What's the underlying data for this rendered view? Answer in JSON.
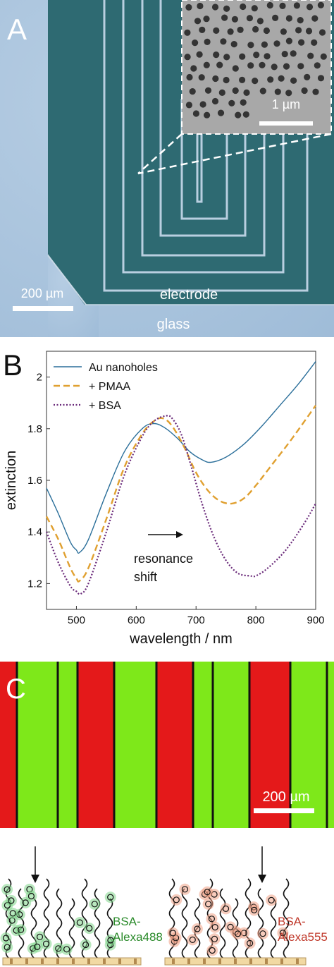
{
  "panels": {
    "a": {
      "letter": "A",
      "inset_scale": "1 µm",
      "scale": "200 µm",
      "electrode_label": "electrode",
      "glass_label": "glass",
      "colors": {
        "glass": "#a9c2dc",
        "electrode": "#2f6b72",
        "gap": "#b7cde0",
        "inset": "#a7a7a7",
        "hole": "#333333"
      }
    },
    "b": {
      "letter": "B",
      "annotation_line1": "resonance",
      "annotation_line2": "shift"
    },
    "c": {
      "letter": "C",
      "scale": "200 µm",
      "label_green_line1": "BSA-",
      "label_green_line2": "Alexa488",
      "label_red_line1": "BSA-",
      "label_red_line2": "Alexa555",
      "colors": {
        "green": "#7ee81a",
        "red": "#e4191a",
        "divider": "#111111",
        "green_label": "#2a8a2a",
        "red_label": "#c0392b"
      }
    }
  },
  "chart_data": {
    "type": "line",
    "xlabel": "wavelength / nm",
    "ylabel": "extinction",
    "xlim": [
      450,
      900
    ],
    "ylim": [
      1.1,
      2.1
    ],
    "xticks": [
      500,
      600,
      700,
      800,
      900
    ],
    "yticks": [
      1.2,
      1.4,
      1.6,
      1.8,
      2.0
    ],
    "ytick_labels": [
      "1.2",
      "1.4",
      "1.6",
      "1.8",
      "2"
    ],
    "grid": false,
    "legend_position": "top-left",
    "series": [
      {
        "name": "Au nanoholes",
        "style": "solid",
        "color": "#2b6f9a",
        "x": [
          450,
          470,
          490,
          500,
          505,
          520,
          550,
          580,
          610,
          630,
          650,
          670,
          690,
          710,
          725,
          750,
          780,
          810,
          840,
          870,
          900
        ],
        "y": [
          1.57,
          1.47,
          1.36,
          1.33,
          1.32,
          1.37,
          1.55,
          1.71,
          1.8,
          1.82,
          1.8,
          1.76,
          1.71,
          1.68,
          1.67,
          1.69,
          1.74,
          1.81,
          1.89,
          1.97,
          2.06
        ]
      },
      {
        "name": "+ PMAA",
        "style": "dashed",
        "color": "#e0a030",
        "x": [
          450,
          470,
          490,
          500,
          505,
          520,
          550,
          580,
          610,
          630,
          645,
          660,
          680,
          700,
          720,
          740,
          760,
          780,
          800,
          830,
          860,
          900
        ],
        "y": [
          1.46,
          1.37,
          1.26,
          1.22,
          1.21,
          1.26,
          1.45,
          1.65,
          1.78,
          1.83,
          1.84,
          1.81,
          1.73,
          1.63,
          1.56,
          1.52,
          1.51,
          1.53,
          1.58,
          1.67,
          1.76,
          1.89
        ]
      },
      {
        "name": "+ BSA",
        "style": "dotted",
        "color": "#6a2a7a",
        "x": [
          450,
          470,
          490,
          500,
          507,
          520,
          550,
          580,
          610,
          630,
          650,
          660,
          675,
          690,
          710,
          730,
          750,
          770,
          790,
          800,
          820,
          850,
          880,
          900
        ],
        "y": [
          1.4,
          1.28,
          1.19,
          1.17,
          1.16,
          1.2,
          1.4,
          1.62,
          1.77,
          1.83,
          1.85,
          1.84,
          1.78,
          1.67,
          1.51,
          1.38,
          1.29,
          1.24,
          1.23,
          1.23,
          1.26,
          1.33,
          1.43,
          1.51
        ]
      }
    ]
  }
}
